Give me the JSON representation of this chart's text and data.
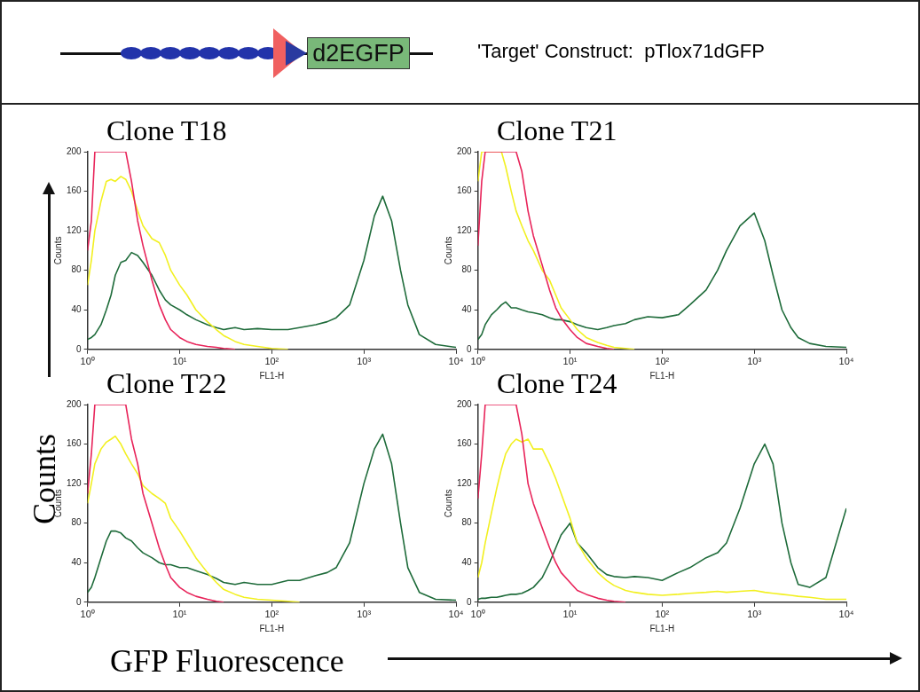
{
  "chart_data": [
    {
      "type": "other",
      "annotations": [
        "d2EGFP",
        "'Target' Construct:  pTlox71dGFP",
        "Counts",
        "GFP Fluorescence"
      ]
    },
    {
      "type": "line",
      "title": "Clone T18",
      "xlabel": "FL1-H",
      "ylabel": "Counts",
      "log": "x",
      "grid": false,
      "legend": false,
      "marker": "none",
      "line_style": "solid",
      "xlim": [
        1,
        10000
      ],
      "ylim": [
        0,
        200
      ],
      "xticks": [
        {
          "value": 1,
          "label": "10⁰"
        },
        {
          "value": 10,
          "label": "10¹"
        },
        {
          "value": 100,
          "label": "10²"
        },
        {
          "value": 1000,
          "label": "10³"
        },
        {
          "value": 10000,
          "label": "10⁴"
        }
      ],
      "yticks": [
        0,
        40,
        80,
        120,
        160,
        200
      ],
      "x": [
        1,
        1.1,
        1.2,
        1.4,
        1.6,
        1.8,
        2,
        2.3,
        2.6,
        3,
        3.5,
        4,
        5,
        6,
        7,
        8,
        10,
        12,
        15,
        20,
        25,
        30,
        40,
        50,
        70,
        100,
        150,
        200,
        300,
        400,
        500,
        700,
        1000,
        1300,
        1600,
        2000,
        2500,
        3000,
        4000,
        6000,
        10000
      ],
      "series": [
        {
          "color": "#e8245a",
          "values": [
            100,
            130,
            200,
            200,
            200,
            200,
            200,
            200,
            200,
            170,
            130,
            105,
            70,
            45,
            30,
            20,
            12,
            8,
            5,
            3,
            2,
            1,
            0,
            null,
            null,
            null,
            null,
            null,
            null,
            null,
            null,
            null,
            null,
            null,
            null,
            null,
            null,
            null,
            null,
            null,
            null
          ]
        },
        {
          "color": "#f2f020",
          "values": [
            65,
            90,
            120,
            150,
            170,
            172,
            170,
            175,
            172,
            160,
            140,
            125,
            112,
            108,
            95,
            80,
            65,
            55,
            40,
            28,
            20,
            14,
            8,
            5,
            3,
            1,
            0,
            null,
            null,
            null,
            null,
            null,
            null,
            null,
            null,
            null,
            null,
            null,
            null,
            null,
            null
          ]
        },
        {
          "color": "#1e6b3a",
          "values": [
            10,
            12,
            15,
            25,
            40,
            55,
            75,
            88,
            90,
            98,
            95,
            88,
            75,
            60,
            50,
            45,
            40,
            35,
            30,
            25,
            22,
            20,
            22,
            20,
            21,
            20,
            20,
            22,
            25,
            28,
            32,
            45,
            90,
            135,
            155,
            130,
            80,
            45,
            15,
            5,
            2
          ]
        }
      ]
    },
    {
      "type": "line",
      "title": "Clone T21",
      "xlabel": "FL1-H",
      "ylabel": "Counts",
      "log": "x",
      "grid": false,
      "legend": false,
      "marker": "none",
      "line_style": "solid",
      "xlim": [
        1,
        10000
      ],
      "ylim": [
        0,
        200
      ],
      "xticks": [
        {
          "value": 1,
          "label": "10⁰"
        },
        {
          "value": 10,
          "label": "10¹"
        },
        {
          "value": 100,
          "label": "10²"
        },
        {
          "value": 1000,
          "label": "10³"
        },
        {
          "value": 10000,
          "label": "10⁴"
        }
      ],
      "yticks": [
        0,
        40,
        80,
        120,
        160,
        200
      ],
      "x": [
        1,
        1.1,
        1.2,
        1.4,
        1.6,
        1.8,
        2,
        2.3,
        2.6,
        3,
        3.5,
        4,
        5,
        6,
        7,
        8,
        10,
        12,
        15,
        20,
        25,
        30,
        40,
        50,
        70,
        100,
        150,
        200,
        300,
        400,
        500,
        700,
        1000,
        1300,
        1600,
        2000,
        2500,
        3000,
        4000,
        6000,
        10000
      ],
      "series": [
        {
          "color": "#e8245a",
          "values": [
            105,
            170,
            200,
            null,
            null,
            200,
            200,
            200,
            200,
            180,
            140,
            115,
            85,
            60,
            42,
            32,
            20,
            12,
            6,
            3,
            1,
            0,
            null,
            null,
            null,
            null,
            null,
            null,
            null,
            null,
            null,
            null,
            null,
            null,
            null,
            null,
            null,
            null,
            null,
            null,
            null
          ]
        },
        {
          "color": "#f2f020",
          "values": [
            170,
            200,
            200,
            null,
            null,
            200,
            185,
            160,
            140,
            125,
            110,
            100,
            80,
            70,
            55,
            42,
            30,
            20,
            12,
            7,
            4,
            2,
            1,
            0,
            null,
            null,
            null,
            null,
            null,
            null,
            null,
            null,
            null,
            null,
            null,
            null,
            null,
            null,
            null,
            null,
            null
          ]
        },
        {
          "color": "#1e6b3a",
          "values": [
            10,
            15,
            25,
            35,
            40,
            45,
            48,
            42,
            42,
            40,
            38,
            37,
            35,
            32,
            30,
            30,
            28,
            25,
            22,
            20,
            22,
            24,
            26,
            30,
            33,
            32,
            35,
            45,
            60,
            80,
            100,
            125,
            138,
            110,
            75,
            40,
            22,
            12,
            6,
            3,
            2
          ]
        }
      ]
    },
    {
      "type": "line",
      "title": "Clone T22",
      "xlabel": "FL1-H",
      "ylabel": "Counts",
      "log": "x",
      "grid": false,
      "legend": false,
      "marker": "none",
      "line_style": "solid",
      "xlim": [
        1,
        10000
      ],
      "ylim": [
        0,
        200
      ],
      "xticks": [
        {
          "value": 1,
          "label": "10⁰"
        },
        {
          "value": 10,
          "label": "10¹"
        },
        {
          "value": 100,
          "label": "10²"
        },
        {
          "value": 1000,
          "label": "10³"
        },
        {
          "value": 10000,
          "label": "10⁴"
        }
      ],
      "yticks": [
        0,
        40,
        80,
        120,
        160,
        200
      ],
      "x": [
        1,
        1.1,
        1.2,
        1.4,
        1.6,
        1.8,
        2,
        2.3,
        2.6,
        3,
        3.5,
        4,
        5,
        6,
        7,
        8,
        10,
        12,
        15,
        20,
        25,
        30,
        40,
        50,
        70,
        100,
        150,
        200,
        300,
        400,
        500,
        700,
        1000,
        1300,
        1600,
        2000,
        2500,
        3000,
        4000,
        6000,
        10000
      ],
      "series": [
        {
          "color": "#e8245a",
          "values": [
            110,
            150,
            200,
            200,
            200,
            200,
            200,
            200,
            200,
            165,
            140,
            110,
            80,
            55,
            38,
            25,
            15,
            10,
            6,
            3,
            1,
            0,
            null,
            null,
            null,
            null,
            null,
            null,
            null,
            null,
            null,
            null,
            null,
            null,
            null,
            null,
            null,
            null,
            null,
            null,
            null
          ]
        },
        {
          "color": "#f2f020",
          "values": [
            100,
            120,
            140,
            155,
            162,
            165,
            168,
            160,
            150,
            140,
            130,
            118,
            110,
            105,
            100,
            85,
            72,
            60,
            45,
            30,
            20,
            13,
            8,
            5,
            3,
            2,
            1,
            0,
            null,
            null,
            null,
            null,
            null,
            null,
            null,
            null,
            null,
            null,
            null,
            null,
            null
          ]
        },
        {
          "color": "#1e6b3a",
          "values": [
            10,
            15,
            25,
            45,
            62,
            72,
            72,
            70,
            65,
            62,
            55,
            50,
            45,
            40,
            38,
            38,
            35,
            35,
            32,
            28,
            24,
            20,
            18,
            20,
            18,
            18,
            22,
            22,
            27,
            30,
            35,
            60,
            120,
            155,
            170,
            140,
            80,
            35,
            10,
            3,
            2
          ]
        }
      ]
    },
    {
      "type": "line",
      "title": "Clone T24",
      "xlabel": "FL1-H",
      "ylabel": "Counts",
      "log": "x",
      "grid": false,
      "legend": false,
      "marker": "none",
      "line_style": "solid",
      "xlim": [
        1,
        10000
      ],
      "ylim": [
        0,
        200
      ],
      "xticks": [
        {
          "value": 1,
          "label": "10⁰"
        },
        {
          "value": 10,
          "label": "10¹"
        },
        {
          "value": 100,
          "label": "10²"
        },
        {
          "value": 1000,
          "label": "10³"
        },
        {
          "value": 10000,
          "label": "10⁴"
        }
      ],
      "yticks": [
        0,
        40,
        80,
        120,
        160,
        200
      ],
      "x": [
        1,
        1.1,
        1.2,
        1.4,
        1.6,
        1.8,
        2,
        2.3,
        2.6,
        3,
        3.5,
        4,
        5,
        6,
        7,
        8,
        10,
        12,
        15,
        20,
        25,
        30,
        40,
        50,
        70,
        100,
        150,
        200,
        300,
        400,
        500,
        700,
        1000,
        1300,
        1600,
        2000,
        2500,
        3000,
        4000,
        6000,
        10000
      ],
      "series": [
        {
          "color": "#e8245a",
          "values": [
            105,
            150,
            200,
            200,
            200,
            200,
            200,
            200,
            200,
            170,
            120,
            100,
            75,
            55,
            40,
            30,
            20,
            12,
            8,
            4,
            2,
            1,
            0,
            null,
            null,
            null,
            null,
            null,
            null,
            null,
            null,
            null,
            null,
            null,
            null,
            null,
            null,
            null,
            null,
            null,
            null
          ]
        },
        {
          "color": "#f2f020",
          "values": [
            25,
            40,
            60,
            90,
            115,
            135,
            150,
            160,
            165,
            162,
            165,
            155,
            155,
            140,
            125,
            110,
            85,
            60,
            45,
            30,
            22,
            17,
            12,
            10,
            8,
            7,
            8,
            9,
            10,
            11,
            10,
            11,
            12,
            10,
            9,
            8,
            7,
            6,
            5,
            3,
            3
          ]
        },
        {
          "color": "#1e6b3a",
          "values": [
            3,
            4,
            4,
            5,
            5,
            6,
            7,
            8,
            8,
            9,
            12,
            15,
            25,
            40,
            55,
            68,
            80,
            60,
            50,
            35,
            28,
            26,
            25,
            26,
            25,
            22,
            30,
            35,
            45,
            50,
            60,
            95,
            140,
            160,
            140,
            80,
            40,
            18,
            15,
            25,
            95
          ]
        }
      ]
    }
  ]
}
